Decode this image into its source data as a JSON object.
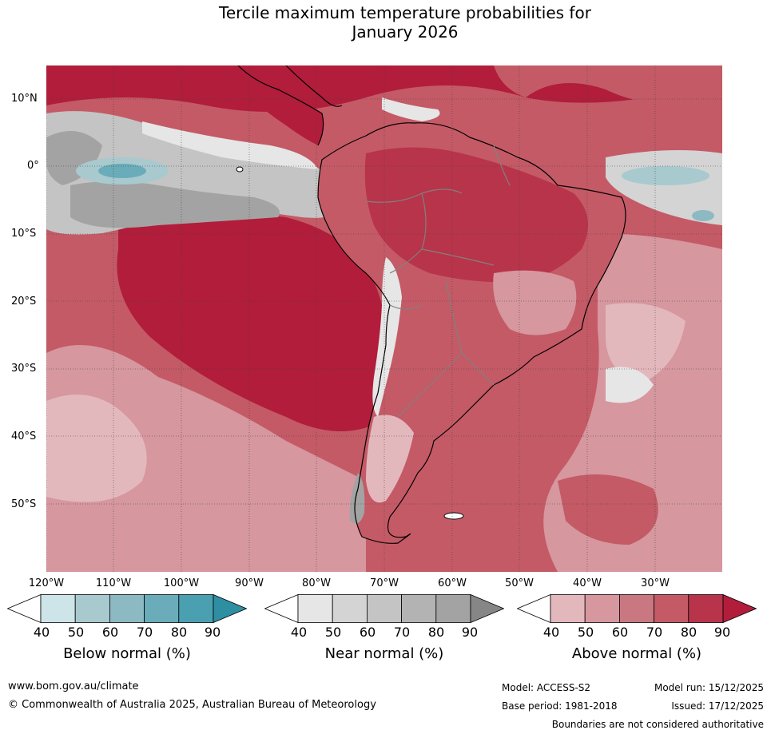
{
  "title_line1": "Tercile maximum temperature probabilities for",
  "title_line2": "January 2026",
  "lat_labels": [
    "10°N",
    "0°",
    "10°S",
    "20°S",
    "30°S",
    "40°S",
    "50°S"
  ],
  "lon_labels": [
    "120°W",
    "110°W",
    "100°W",
    "90°W",
    "80°W",
    "70°W",
    "60°W",
    "50°W",
    "40°W",
    "30°W"
  ],
  "colorbars": [
    {
      "label": "Below normal (%)",
      "ticks": [
        "40",
        "50",
        "60",
        "70",
        "80",
        "90"
      ],
      "colors": [
        "#ffffff",
        "#cde4e9",
        "#a8c9ce",
        "#8dbac2",
        "#6aacb9",
        "#4aa0b0",
        "#2e8ea2"
      ]
    },
    {
      "label": "Near normal (%)",
      "ticks": [
        "40",
        "50",
        "60",
        "70",
        "80",
        "90"
      ],
      "colors": [
        "#ffffff",
        "#e6e6e6",
        "#d4d4d4",
        "#c4c4c4",
        "#b3b3b3",
        "#a3a3a3",
        "#868686"
      ]
    },
    {
      "label": "Above normal (%)",
      "ticks": [
        "40",
        "50",
        "60",
        "70",
        "80",
        "90"
      ],
      "colors": [
        "#ffffff",
        "#e3b8bd",
        "#d6979f",
        "#c97882",
        "#c45a66",
        "#b8344a",
        "#b11d3b"
      ]
    }
  ],
  "footer": {
    "website": "www.bom.gov.au/climate",
    "copyright": "© Commonwealth of Australia 2025, Australian Bureau of Meteorology",
    "model": "Model: ACCESS-S2",
    "base_period": "Base period: 1981-2018",
    "model_run": "Model run: 15/12/2025",
    "issued": "Issued: 17/12/2025",
    "disclaimer": "Boundaries are not considered authoritative"
  }
}
